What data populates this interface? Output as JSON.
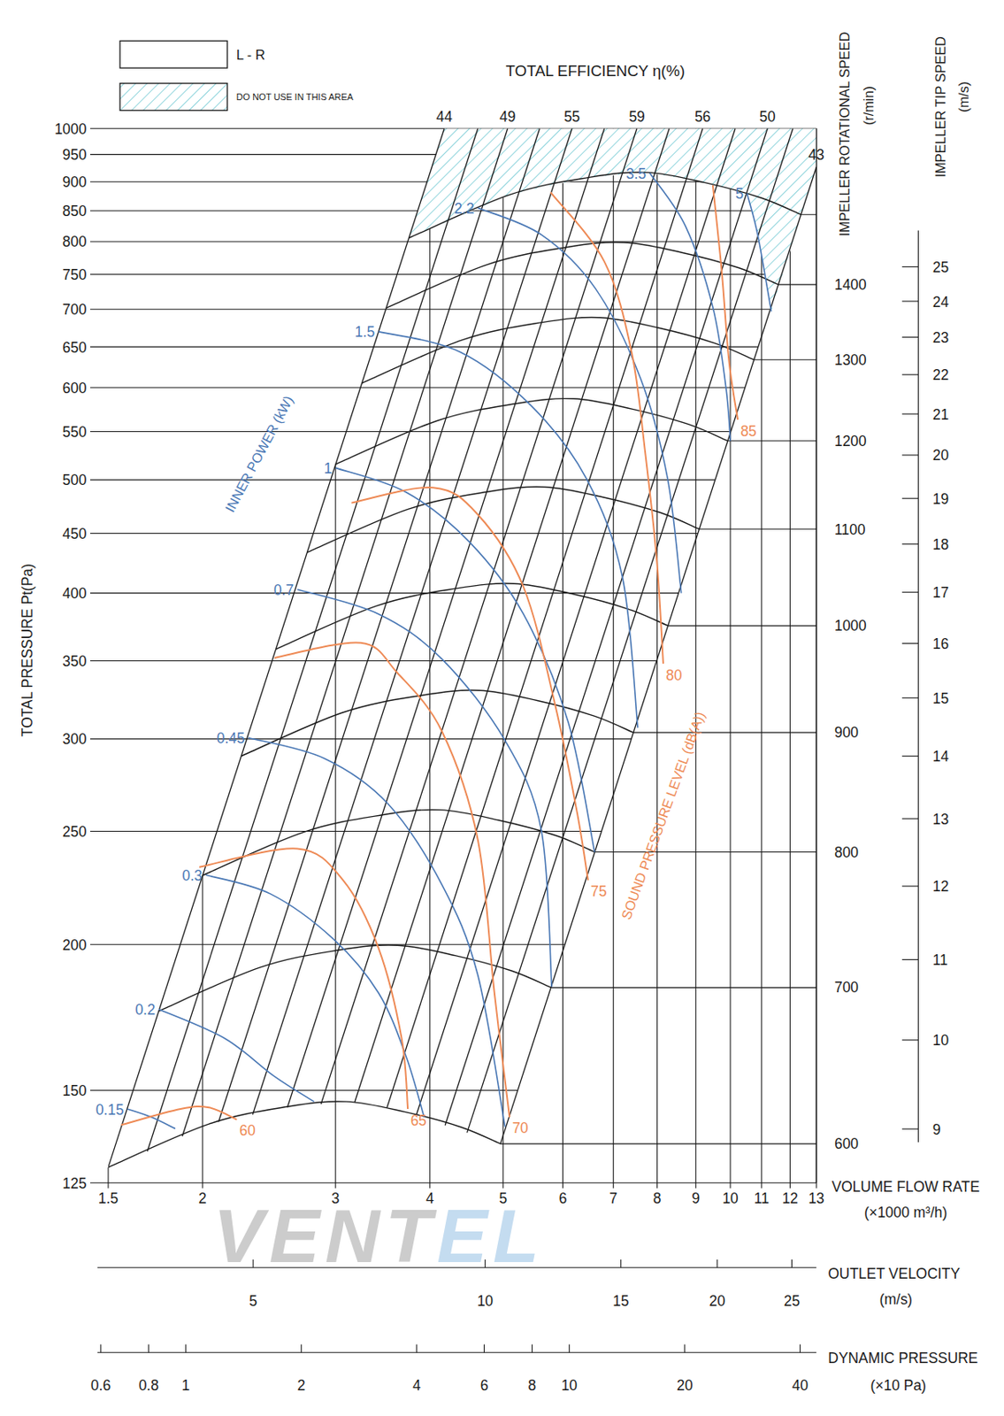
{
  "chart_data": {
    "type": "fan_performance",
    "log": true,
    "grid": true,
    "legend": "upper left",
    "legend_items": [
      "L - R",
      "DO NOT USE IN THIS AREA"
    ],
    "x_label": "VOLUME FLOW RATE",
    "x_unit": "(×1000 m³/h)",
    "xlim": [
      1.5,
      13
    ],
    "xticks": [
      1.5,
      2,
      3,
      4,
      5,
      6,
      7,
      8,
      9,
      10,
      11,
      12,
      13
    ],
    "y_label": "TOTAL PRESSURE Pt(Pa)",
    "ylim": [
      125,
      1000
    ],
    "yticks": [
      125,
      150,
      200,
      250,
      300,
      350,
      400,
      450,
      500,
      550,
      600,
      650,
      700,
      750,
      800,
      850,
      900,
      950,
      1000
    ],
    "y2_label": "IMPELLER ROTATIONAL SPEED",
    "y2_unit": "(r/min)",
    "y2lim": [
      577,
      1633
    ],
    "y2ticks": [
      600,
      700,
      800,
      900,
      1000,
      1100,
      1200,
      1300,
      1400
    ],
    "y3_label": "IMPELLER TIP SPEED",
    "y3_unit": "(m/s)",
    "y3lim": [
      8.86,
      26.1
    ],
    "y3ticks": [
      9,
      10,
      11,
      12,
      13,
      14,
      15,
      16,
      17,
      18,
      19,
      20,
      21,
      22,
      23,
      24,
      25
    ],
    "x2_label": "OUTLET VELOCITY",
    "x2_unit": "(m/s)",
    "x2lim": [
      3.14,
      26.9
    ],
    "x2ticks": [
      5,
      10,
      15,
      20,
      25
    ],
    "x3_label": "DYNAMIC PRESSURE",
    "x3_unit": "(×10 Pa)",
    "x3lim": [
      0.588,
      44.1
    ],
    "x3ticks": [
      0.6,
      0.8,
      1,
      2,
      4,
      6,
      8,
      10,
      20,
      40
    ],
    "restricted_area": {
      "color": "#7fcfd8",
      "x": [
        4.18,
        13,
        13,
        11.33,
        10.87,
        10.52,
        9.25,
        7.75,
        6.5,
        5.1,
        3.75
      ],
      "values": [
        1000,
        1000,
        927,
        697,
        811,
        880,
        898.8,
        916.9,
        908,
        877.5,
        805.6
      ]
    },
    "speed_curves": {
      "color": "#1a1a1a",
      "curves": [
        {
          "x": [
            1.5,
            2.04,
            2.6,
            3.1,
            3.7,
            4.4,
            4.96
          ],
          "values": [
            128.9,
            140.4,
            145.3,
            146.7,
            143.8,
            139.5,
            135
          ]
        },
        {
          "x": [
            1.75,
            2.38,
            3.03,
            3.62,
            4.32,
            5.13,
            5.79
          ],
          "values": [
            175.4,
            191.1,
            197.8,
            199.7,
            195.7,
            189.9,
            183.7
          ]
        },
        {
          "x": [
            2.0,
            2.72,
            3.47,
            4.13,
            4.93,
            5.87,
            6.61
          ],
          "values": [
            229.2,
            249.6,
            258.3,
            260.8,
            255.6,
            248.0,
            240.0
          ]
        },
        {
          "x": [
            2.25,
            3.06,
            3.9,
            4.65,
            5.55,
            6.6,
            7.44
          ],
          "values": [
            290.0,
            315.9,
            326.9,
            330.1,
            323.6,
            313.9,
            303.8
          ]
        },
        {
          "x": [
            2.5,
            3.4,
            4.33,
            5.17,
            6.17,
            7.33,
            8.27
          ],
          "values": [
            358.1,
            390.0,
            403.6,
            407.5,
            399.4,
            387.5,
            375.0
          ]
        },
        {
          "x": [
            2.75,
            3.74,
            4.77,
            5.68,
            6.78,
            8.07,
            9.09
          ],
          "values": [
            433.3,
            471.9,
            488.4,
            493.1,
            483.3,
            468.9,
            453.8
          ]
        },
        {
          "x": [
            3.0,
            4.08,
            5.2,
            6.2,
            7.4,
            8.8,
            9.92
          ],
          "values": [
            515.6,
            561.6,
            581.2,
            586.8,
            575.2,
            558.0,
            540.0
          ]
        },
        {
          "x": [
            3.25,
            4.42,
            5.63,
            6.72,
            8.02,
            9.53,
            10.75
          ],
          "values": [
            605.1,
            659.1,
            682.1,
            688.7,
            675.1,
            654.9,
            633.7
          ]
        },
        {
          "x": [
            3.5,
            4.76,
            6.07,
            7.23,
            8.63,
            10.27,
            11.57
          ],
          "values": [
            701.8,
            764.4,
            791.1,
            798.7,
            782.9,
            759.5,
            735.0
          ]
        },
        {
          "x": [
            3.75,
            5.1,
            6.5,
            7.75,
            9.25,
            11.0,
            12.4
          ],
          "values": [
            805.6,
            877.5,
            908.0,
            916.9,
            898.8,
            871.9,
            843.8
          ]
        }
      ]
    },
    "efficiency_lines": {
      "title": "TOTAL EFFICIENCY η(%)",
      "color": "#1a1a1a",
      "lines": [
        {
          "efficiency": 44,
          "x": [
            1.5,
            4.18
          ],
          "values": [
            128.9,
            1000
          ]
        },
        {
          "x": [
            1.69,
            4.63
          ],
          "values": [
            133,
            1000
          ]
        },
        {
          "efficiency": 49,
          "x": [
            1.88,
            5.07
          ],
          "values": [
            137,
            1000
          ]
        },
        {
          "x": [
            2.1,
            5.59
          ],
          "values": [
            141,
            1000
          ]
        },
        {
          "efficiency": 55,
          "x": [
            2.33,
            6.17
          ],
          "values": [
            143,
            1000
          ]
        },
        {
          "x": [
            2.59,
            6.81
          ],
          "values": [
            145,
            1000
          ]
        },
        {
          "efficiency": 59,
          "x": [
            2.87,
            7.52
          ],
          "values": [
            146,
            1000
          ]
        },
        {
          "x": [
            3.18,
            8.3
          ],
          "values": [
            146.5,
            1000
          ]
        },
        {
          "efficiency": 56,
          "x": [
            3.51,
            9.19
          ],
          "values": [
            145,
            1000
          ]
        },
        {
          "x": [
            3.84,
            10.15
          ],
          "values": [
            143,
            1000
          ]
        },
        {
          "efficiency": 50,
          "x": [
            4.19,
            11.2
          ],
          "values": [
            140,
            1000
          ]
        },
        {
          "x": [
            4.48,
            12.1
          ],
          "values": [
            138,
            1000
          ]
        },
        {
          "efficiency": 43,
          "x": [
            4.96,
            13
          ],
          "values": [
            135,
            927
          ]
        }
      ]
    },
    "power_curves": {
      "title": "INNER POWER (kW)",
      "color": "#4a78b5",
      "curves": [
        {
          "power": 0.15,
          "x": [
            1.59,
            1.71,
            1.84
          ],
          "values": [
            144.6,
            142.3,
            139.1
          ]
        },
        {
          "power": 0.2,
          "x": [
            1.75,
            2.14,
            2.49,
            2.81
          ],
          "values": [
            176,
            166.2,
            154.2,
            146.7
          ]
        },
        {
          "power": 0.3,
          "x": [
            2.02,
            2.46,
            2.98,
            3.42,
            3.72,
            3.93
          ],
          "values": [
            229.4,
            221,
            202.2,
            181.8,
            160.4,
            142.3
          ]
        },
        {
          "power": 0.45,
          "x": [
            2.3,
            2.9,
            3.52,
            4.15,
            4.63,
            5.03
          ],
          "values": [
            300.7,
            288.7,
            264,
            225,
            188.3,
            139.6
          ]
        },
        {
          "power": 0.7,
          "x": [
            2.67,
            3.42,
            4.15,
            5.03,
            5.62,
            5.8
          ],
          "values": [
            402.9,
            383.8,
            351.2,
            299.1,
            250.4,
            184
          ]
        },
        {
          "power": 1,
          "x": [
            3.0,
            3.72,
            4.51,
            5.32,
            6.1,
            6.61
          ],
          "values": [
            512,
            488,
            442.6,
            383.8,
            310,
            240
          ]
        },
        {
          "power": 1.5,
          "x": [
            3.42,
            4.39,
            5.46,
            6.45,
            7.2,
            7.54
          ],
          "values": [
            670,
            643.4,
            578,
            501,
            412,
            306.7
          ]
        },
        {
          "power": 2.2,
          "x": [
            4.63,
            5.62,
            6.63,
            7.61,
            8.26,
            8.61
          ],
          "values": [
            855,
            811,
            729,
            610,
            501,
            400
          ]
        },
        {
          "power": 3.5,
          "x": [
            7.82,
            8.72,
            9.48,
            9.87,
            10.0
          ],
          "values": [
            916,
            825,
            703,
            599,
            540
          ]
        },
        {
          "power": 5,
          "x": [
            10.52,
            10.87,
            11.33
          ],
          "values": [
            880,
            811,
            697
          ]
        }
      ]
    },
    "sound_curves": {
      "title": "SOUND PRESSURE LEVEL (dB(A))",
      "color": "#ee8a55",
      "curves": [
        {
          "level": 60,
          "x": [
            1.56,
            1.87,
            2.04,
            2.22
          ],
          "values": [
            140.1,
            144.6,
            145,
            141.6
          ]
        },
        {
          "level": 65,
          "x": [
            1.98,
            2.67,
            3.07,
            3.42,
            3.67,
            3.74
          ],
          "values": [
            233,
            241.6,
            227,
            198.6,
            166.2,
            144.6
          ]
        },
        {
          "level": 70,
          "x": [
            2.49,
            3.24,
            3.62,
            4.15,
            4.63,
            4.87,
            5.1
          ],
          "values": [
            352,
            362.6,
            341.9,
            304.5,
            245.9,
            181.8,
            142.3
          ]
        },
        {
          "level": 75,
          "x": [
            3.15,
            4.04,
            4.63,
            5.32,
            5.86,
            6.27,
            6.48
          ],
          "values": [
            477.9,
            492.5,
            467,
            405,
            321,
            259,
            227
          ]
        },
        {
          "level": 80,
          "x": [
            5.78,
            6.81,
            7.4,
            7.71,
            7.99,
            8.15
          ],
          "values": [
            881.6,
            769,
            643.4,
            529,
            427,
            348
          ]
        },
        {
          "level": 85,
          "x": [
            9.48,
            9.74,
            9.96,
            10.23
          ],
          "values": [
            894,
            755,
            632,
            563
          ]
        }
      ]
    },
    "watermark": [
      "VENT",
      "EL"
    ]
  }
}
